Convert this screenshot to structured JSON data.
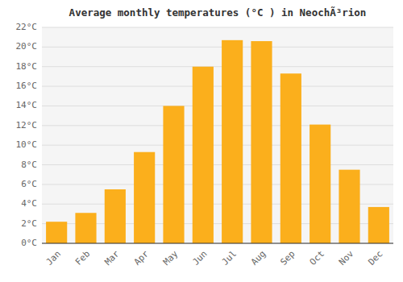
{
  "chart_data": {
    "type": "bar",
    "title": "Average monthly temperatures (°C ) in NeochÃ³rion",
    "categories": [
      "Jan",
      "Feb",
      "Mar",
      "Apr",
      "May",
      "Jun",
      "Jul",
      "Aug",
      "Sep",
      "Oct",
      "Nov",
      "Dec"
    ],
    "values": [
      2.2,
      3.1,
      5.5,
      9.3,
      14.0,
      18.0,
      20.7,
      20.6,
      17.3,
      12.1,
      7.5,
      3.7
    ],
    "color": "#FBAF1C",
    "ylim": [
      0,
      22
    ],
    "yticks": [
      {
        "value": 0,
        "label": "0°C"
      },
      {
        "value": 2,
        "label": "2°C"
      },
      {
        "value": 4,
        "label": "4°C"
      },
      {
        "value": 6,
        "label": "6°C"
      },
      {
        "value": 8,
        "label": "8°C"
      },
      {
        "value": 10,
        "label": "10°C"
      },
      {
        "value": 12,
        "label": "12°C"
      },
      {
        "value": 14,
        "label": "14°C"
      },
      {
        "value": 16,
        "label": "16°C"
      },
      {
        "value": 18,
        "label": "18°C"
      },
      {
        "value": 20,
        "label": "20°C"
      },
      {
        "value": 22,
        "label": "22°C"
      }
    ],
    "grid": true
  }
}
